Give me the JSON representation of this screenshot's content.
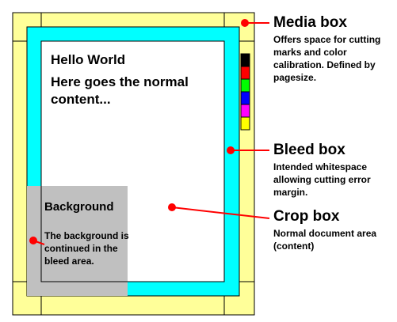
{
  "page": {
    "hello": "Hello World",
    "content": "Here goes the normal content...",
    "background_title": "Background",
    "background_desc": "The background is continued in the bleed area."
  },
  "callouts": [
    {
      "id": "media",
      "title": "Media box",
      "desc": "Offers space for cutting marks and color calibration. Defined by pagesize."
    },
    {
      "id": "bleed",
      "title": "Bleed box",
      "desc": "Intended whitespace allowing cutting error margin."
    },
    {
      "id": "crop",
      "title": "Crop box",
      "desc": "Normal document area (content)"
    }
  ],
  "colors": {
    "media": "#ffff99",
    "bleed": "#00ffff",
    "crop": "#ffffff",
    "background": "#c0c0c0",
    "pointer": "#ff0000",
    "calibration": [
      "#000000",
      "#ff0000",
      "#00ff00",
      "#0000ff",
      "#ff00ff",
      "#ffff00"
    ]
  }
}
